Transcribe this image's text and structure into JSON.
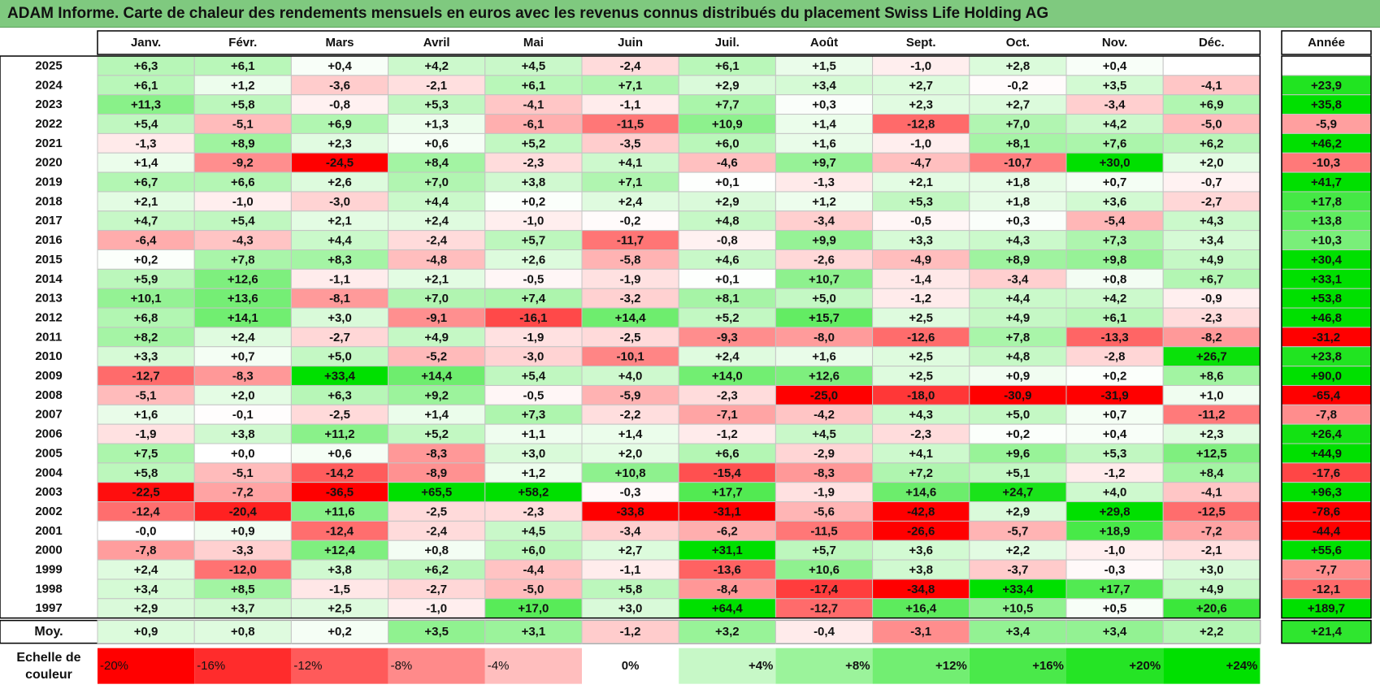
{
  "title": "ADAM Informe. Carte de chaleur des rendements mensuels en euros avec les revenus connus distribués du placement Swiss Life Holding AG",
  "chart_data": {
    "type": "heatmap",
    "months": [
      "Janv.",
      "Févr.",
      "Mars",
      "Avril",
      "Mai",
      "Juin",
      "Juil.",
      "Août",
      "Sept.",
      "Oct.",
      "Nov.",
      "Déc."
    ],
    "year_label": "Année",
    "rows": [
      {
        "year": "2025",
        "m": [
          "+6,3",
          "+6,1",
          "+0,4",
          "+4,2",
          "+4,5",
          "-2,4",
          "+6,1",
          "+1,5",
          "-1,0",
          "+2,8",
          "+0,4",
          ""
        ],
        "y": ""
      },
      {
        "year": "2024",
        "m": [
          "+6,1",
          "+1,2",
          "-3,6",
          "-2,1",
          "+6,1",
          "+7,1",
          "+2,9",
          "+3,4",
          "+2,7",
          "-0,2",
          "+3,5",
          "-4,1"
        ],
        "y": "+23,9"
      },
      {
        "year": "2023",
        "m": [
          "+11,3",
          "+5,8",
          "-0,8",
          "+5,3",
          "-4,1",
          "-1,1",
          "+7,7",
          "+0,3",
          "+2,3",
          "+2,7",
          "-3,4",
          "+6,9"
        ],
        "y": "+35,8"
      },
      {
        "year": "2022",
        "m": [
          "+5,4",
          "-5,1",
          "+6,9",
          "+1,3",
          "-6,1",
          "-11,5",
          "+10,9",
          "+1,4",
          "-12,8",
          "+7,0",
          "+4,2",
          "-5,0"
        ],
        "y": "-5,9"
      },
      {
        "year": "2021",
        "m": [
          "-1,3",
          "+8,9",
          "+2,3",
          "+0,6",
          "+5,2",
          "-3,5",
          "+6,0",
          "+1,6",
          "-1,0",
          "+8,1",
          "+7,6",
          "+6,2"
        ],
        "y": "+46,2"
      },
      {
        "year": "2020",
        "m": [
          "+1,4",
          "-9,2",
          "-24,5",
          "+8,4",
          "-2,3",
          "+4,1",
          "-4,6",
          "+9,7",
          "-4,7",
          "-10,7",
          "+30,0",
          "+2,0"
        ],
        "y": "-10,3"
      },
      {
        "year": "2019",
        "m": [
          "+6,7",
          "+6,6",
          "+2,6",
          "+7,0",
          "+3,8",
          "+7,1",
          "+0,1",
          "-1,3",
          "+2,1",
          "+1,8",
          "+0,7",
          "-0,7"
        ],
        "y": "+41,7"
      },
      {
        "year": "2018",
        "m": [
          "+2,1",
          "-1,0",
          "-3,0",
          "+4,4",
          "+0,2",
          "+2,4",
          "+2,9",
          "+1,2",
          "+5,3",
          "+1,8",
          "+3,6",
          "-2,7"
        ],
        "y": "+17,8"
      },
      {
        "year": "2017",
        "m": [
          "+4,7",
          "+5,4",
          "+2,1",
          "+2,4",
          "-1,0",
          "-0,2",
          "+4,8",
          "-3,4",
          "-0,5",
          "+0,3",
          "-5,4",
          "+4,3"
        ],
        "y": "+13,8"
      },
      {
        "year": "2016",
        "m": [
          "-6,4",
          "-4,3",
          "+4,4",
          "-2,4",
          "+5,7",
          "-11,7",
          "-0,8",
          "+9,9",
          "+3,3",
          "+4,3",
          "+7,3",
          "+3,4"
        ],
        "y": "+10,3"
      },
      {
        "year": "2015",
        "m": [
          "+0,2",
          "+7,8",
          "+8,3",
          "-4,8",
          "+2,6",
          "-5,8",
          "+4,6",
          "-2,6",
          "-4,9",
          "+8,9",
          "+9,8",
          "+4,9"
        ],
        "y": "+30,4"
      },
      {
        "year": "2014",
        "m": [
          "+5,9",
          "+12,6",
          "-1,1",
          "+2,1",
          "-0,5",
          "-1,9",
          "+0,1",
          "+10,7",
          "-1,4",
          "-3,4",
          "+0,8",
          "+6,7"
        ],
        "y": "+33,1"
      },
      {
        "year": "2013",
        "m": [
          "+10,1",
          "+13,6",
          "-8,1",
          "+7,0",
          "+7,4",
          "-3,2",
          "+8,1",
          "+5,0",
          "-1,2",
          "+4,4",
          "+4,2",
          "-0,9"
        ],
        "y": "+53,8"
      },
      {
        "year": "2012",
        "m": [
          "+6,8",
          "+14,1",
          "+3,0",
          "-9,1",
          "-16,1",
          "+14,4",
          "+5,2",
          "+15,7",
          "+2,5",
          "+4,9",
          "+6,1",
          "-2,3"
        ],
        "y": "+46,8"
      },
      {
        "year": "2011",
        "m": [
          "+8,2",
          "+2,4",
          "-2,7",
          "+4,9",
          "-1,9",
          "-2,5",
          "-9,3",
          "-8,0",
          "-12,6",
          "+7,8",
          "-13,3",
          "-8,2"
        ],
        "y": "-31,2"
      },
      {
        "year": "2010",
        "m": [
          "+3,3",
          "+0,7",
          "+5,0",
          "-5,2",
          "-3,0",
          "-10,1",
          "+2,4",
          "+1,6",
          "+2,5",
          "+4,8",
          "-2,8",
          "+26,7"
        ],
        "y": "+23,8"
      },
      {
        "year": "2009",
        "m": [
          "-12,7",
          "-8,3",
          "+33,4",
          "+14,4",
          "+5,4",
          "+4,0",
          "+14,0",
          "+12,6",
          "+2,5",
          "+0,9",
          "+0,2",
          "+8,6"
        ],
        "y": "+90,0"
      },
      {
        "year": "2008",
        "m": [
          "-5,1",
          "+2,0",
          "+6,3",
          "+9,2",
          "-0,5",
          "-5,9",
          "-2,3",
          "-25,0",
          "-18,0",
          "-30,9",
          "-31,9",
          "+1,0"
        ],
        "y": "-65,4"
      },
      {
        "year": "2007",
        "m": [
          "+1,6",
          "-0,1",
          "-2,5",
          "+1,4",
          "+7,3",
          "-2,2",
          "-7,1",
          "-4,2",
          "+4,3",
          "+5,0",
          "+0,7",
          "-11,2"
        ],
        "y": "-7,8"
      },
      {
        "year": "2006",
        "m": [
          "-1,9",
          "+3,8",
          "+11,2",
          "+5,2",
          "+1,1",
          "+1,4",
          "-1,2",
          "+4,5",
          "-2,3",
          "+0,2",
          "+0,4",
          "+2,3"
        ],
        "y": "+26,4"
      },
      {
        "year": "2005",
        "m": [
          "+7,5",
          "+0,0",
          "+0,6",
          "-8,3",
          "+3,0",
          "+2,0",
          "+6,6",
          "-2,9",
          "+4,1",
          "+9,6",
          "+5,3",
          "+12,5"
        ],
        "y": "+44,9"
      },
      {
        "year": "2004",
        "m": [
          "+5,8",
          "-5,1",
          "-14,2",
          "-8,9",
          "+1,2",
          "+10,8",
          "-15,4",
          "-8,3",
          "+7,2",
          "+5,1",
          "-1,2",
          "+8,4"
        ],
        "y": "-17,6"
      },
      {
        "year": "2003",
        "m": [
          "-22,5",
          "-7,2",
          "-36,5",
          "+65,5",
          "+58,2",
          "-0,3",
          "+17,7",
          "-1,9",
          "+14,6",
          "+24,7",
          "+4,0",
          "-4,1"
        ],
        "y": "+96,3"
      },
      {
        "year": "2002",
        "m": [
          "-12,4",
          "-20,4",
          "+11,6",
          "-2,5",
          "-2,3",
          "-33,8",
          "-31,1",
          "-5,6",
          "-42,8",
          "+2,9",
          "+29,8",
          "-12,5"
        ],
        "y": "-78,6"
      },
      {
        "year": "2001",
        "m": [
          "-0,0",
          "+0,9",
          "-12,4",
          "-2,4",
          "+4,5",
          "-3,4",
          "-6,2",
          "-11,5",
          "-26,6",
          "-5,7",
          "+18,9",
          "-7,2"
        ],
        "y": "-44,4"
      },
      {
        "year": "2000",
        "m": [
          "-7,8",
          "-3,3",
          "+12,4",
          "+0,8",
          "+6,0",
          "+2,7",
          "+31,1",
          "+5,7",
          "+3,6",
          "+2,2",
          "-1,0",
          "-2,1"
        ],
        "y": "+55,6"
      },
      {
        "year": "1999",
        "m": [
          "+2,4",
          "-12,0",
          "+3,8",
          "+6,2",
          "-4,4",
          "-1,1",
          "-13,6",
          "+10,6",
          "+3,8",
          "-3,7",
          "-0,3",
          "+3,0"
        ],
        "y": "-7,7"
      },
      {
        "year": "1998",
        "m": [
          "+3,4",
          "+8,5",
          "-1,5",
          "-2,7",
          "-5,0",
          "+5,8",
          "-8,4",
          "-17,4",
          "-34,8",
          "+33,4",
          "+17,7",
          "+4,9"
        ],
        "y": "-12,1"
      },
      {
        "year": "1997",
        "m": [
          "+2,9",
          "+3,7",
          "+2,5",
          "-1,0",
          "+17,0",
          "+3,0",
          "+64,4",
          "-12,7",
          "+16,4",
          "+10,5",
          "+0,5",
          "+20,6"
        ],
        "y": "+189,7"
      }
    ],
    "avg_label": "Moy.",
    "averages": [
      "+0,9",
      "+0,8",
      "+0,2",
      "+3,5",
      "+3,1",
      "-1,2",
      "+3,2",
      "-0,4",
      "-3,1",
      "+3,4",
      "+3,4",
      "+2,2"
    ],
    "avg_year": "+21,4",
    "scale_label_1": "Echelle de",
    "scale_label_2": "couleur",
    "scale": [
      "-20%",
      "-16%",
      "-12%",
      "-8%",
      "-4%",
      "0%",
      "+4%",
      "+8%",
      "+12%",
      "+16%",
      "+20%",
      "+24%"
    ],
    "scale_values": [
      -20,
      -16,
      -12,
      -8,
      -4,
      0,
      4,
      8,
      12,
      16,
      20,
      24
    ],
    "colors": {
      "negative": "#ff0000",
      "positive": "#00e000",
      "neutral": "#ffffff",
      "title_bg": "#7fc97f"
    }
  }
}
